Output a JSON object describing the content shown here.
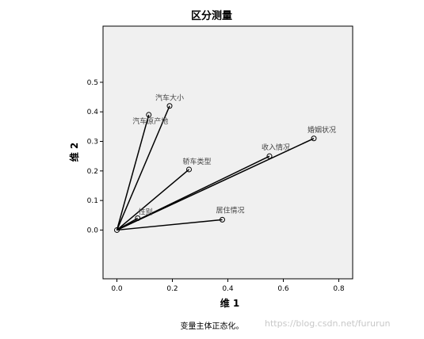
{
  "chart_data": {
    "type": "line",
    "title": "区分测量",
    "xlabel": "维 1",
    "ylabel": "维 2",
    "xlim": [
      -0.05,
      0.85
    ],
    "ylim": [
      -0.165,
      0.69
    ],
    "xticks": [
      "0.0",
      "0.2",
      "0.4",
      "0.6",
      "0.8"
    ],
    "xtick_values": [
      0.0,
      0.2,
      0.4,
      0.6,
      0.8
    ],
    "yticks": [
      "0.0",
      "0.1",
      "0.2",
      "0.3",
      "0.4",
      "0.5"
    ],
    "ytick_values": [
      0.0,
      0.1,
      0.2,
      0.3,
      0.4,
      0.5
    ],
    "grid": false,
    "origin": [
      0.0,
      0.0
    ],
    "vectors": [
      {
        "label": "汽车大小",
        "x": 0.19,
        "y": 0.42
      },
      {
        "label": "汽车原产地",
        "x": 0.115,
        "y": 0.39
      },
      {
        "label": "轿车类型",
        "x": 0.26,
        "y": 0.205
      },
      {
        "label": "收入情况",
        "x": 0.55,
        "y": 0.25
      },
      {
        "label": "婚姻状况",
        "x": 0.71,
        "y": 0.31
      },
      {
        "label": "性别",
        "x": 0.075,
        "y": 0.04
      },
      {
        "label": "居住情况",
        "x": 0.38,
        "y": 0.035
      }
    ]
  },
  "footnote": "变量主体正态化。",
  "watermark": "https://blog.csdn.net/fururun",
  "colors": {
    "plot_bg": "#f0f0f0",
    "line": "#000000",
    "label": "#444444"
  }
}
